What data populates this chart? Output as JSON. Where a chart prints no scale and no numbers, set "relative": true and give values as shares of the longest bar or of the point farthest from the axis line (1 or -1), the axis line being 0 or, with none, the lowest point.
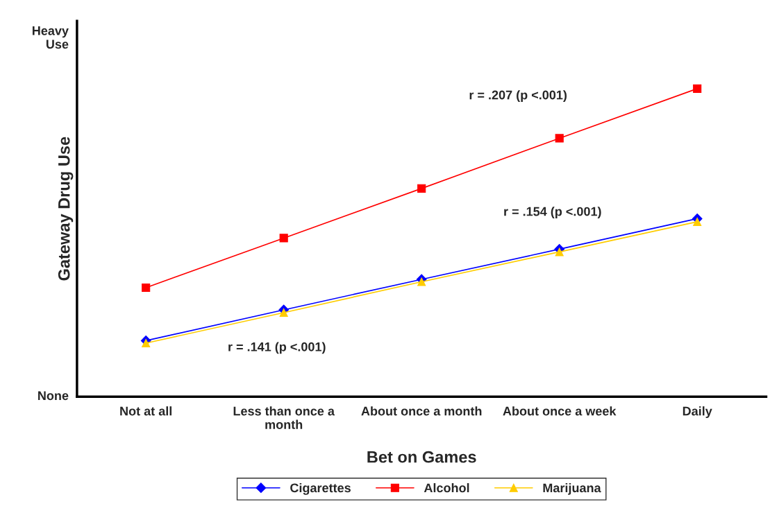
{
  "chart_data": {
    "type": "line",
    "xlabel": "Bet on Games",
    "ylabel": "Gateway Drug Use",
    "categories": [
      "Not at all",
      "Less than once a month",
      "About once a month",
      "About once a week",
      "Daily"
    ],
    "series": [
      {
        "name": "Cigarettes",
        "color": "#0000ff",
        "marker": "diamond",
        "values": [
          0.182,
          0.282,
          0.381,
          0.479,
          0.578
        ]
      },
      {
        "name": "Alcohol",
        "color": "#ff0000",
        "marker": "square",
        "values": [
          0.354,
          0.515,
          0.676,
          0.839,
          1
        ]
      },
      {
        "name": "Marijuana",
        "color": "#ffcc00",
        "marker": "triangle",
        "values": [
          0.174,
          0.273,
          0.373,
          0.47,
          0.568
        ]
      }
    ],
    "relative": true,
    "annotations": [
      "r = .207 (p <.001)",
      "r = .154 (p <.001)",
      "r = .141 (p <.001)",
      "None",
      "Heavy Use"
    ],
    "grid": false,
    "legend": "bottom",
    "line_style": "solid"
  }
}
